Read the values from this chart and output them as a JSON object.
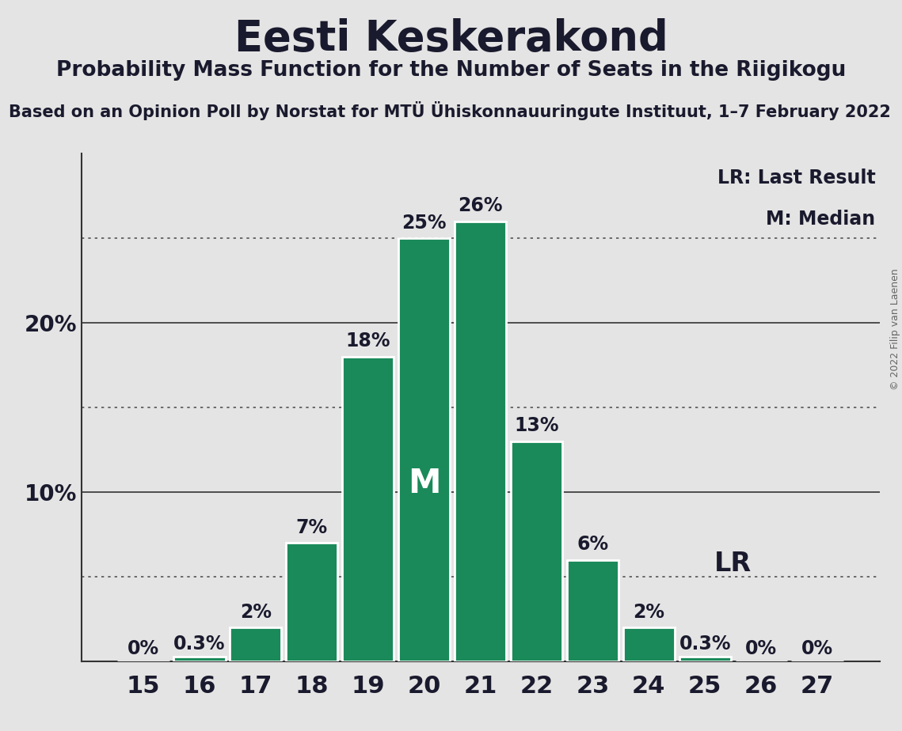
{
  "title": "Eesti Keskerakond",
  "subtitle": "Probability Mass Function for the Number of Seats in the Riigikogu",
  "source_line": "Based on an Opinion Poll by Norstat for MTÜ Ühiskonnauuringute Instituut, 1–7 February 2022",
  "copyright": "© 2022 Filip van Laenen",
  "seats": [
    15,
    16,
    17,
    18,
    19,
    20,
    21,
    22,
    23,
    24,
    25,
    26,
    27
  ],
  "probabilities": [
    0.0,
    0.3,
    2.0,
    7.0,
    18.0,
    25.0,
    26.0,
    13.0,
    6.0,
    2.0,
    0.3,
    0.0,
    0.0
  ],
  "labels": [
    "0%",
    "0.3%",
    "2%",
    "7%",
    "18%",
    "25%",
    "26%",
    "13%",
    "6%",
    "2%",
    "0.3%",
    "0%",
    "0%"
  ],
  "bar_color": "#1a8a5a",
  "bar_edge_color": "#ffffff",
  "median_seat": 20,
  "last_result_seat": 25,
  "median_label": "M",
  "background_color": "#e4e4e4",
  "plot_background_color": "#e4e4e4",
  "title_fontsize": 38,
  "subtitle_fontsize": 19,
  "source_fontsize": 15,
  "ylabel_fontsize": 20,
  "xlabel_fontsize": 22,
  "bar_label_fontsize": 17,
  "median_text_fontsize": 30,
  "ylim": [
    0,
    30
  ],
  "dotted_lines": [
    5.0,
    15.0,
    25.0
  ],
  "solid_lines": [
    10.0,
    20.0
  ],
  "lr_label": "LR",
  "lr_label_fontsize": 24,
  "legend_fontsize": 17,
  "text_color": "#1a1a2e"
}
